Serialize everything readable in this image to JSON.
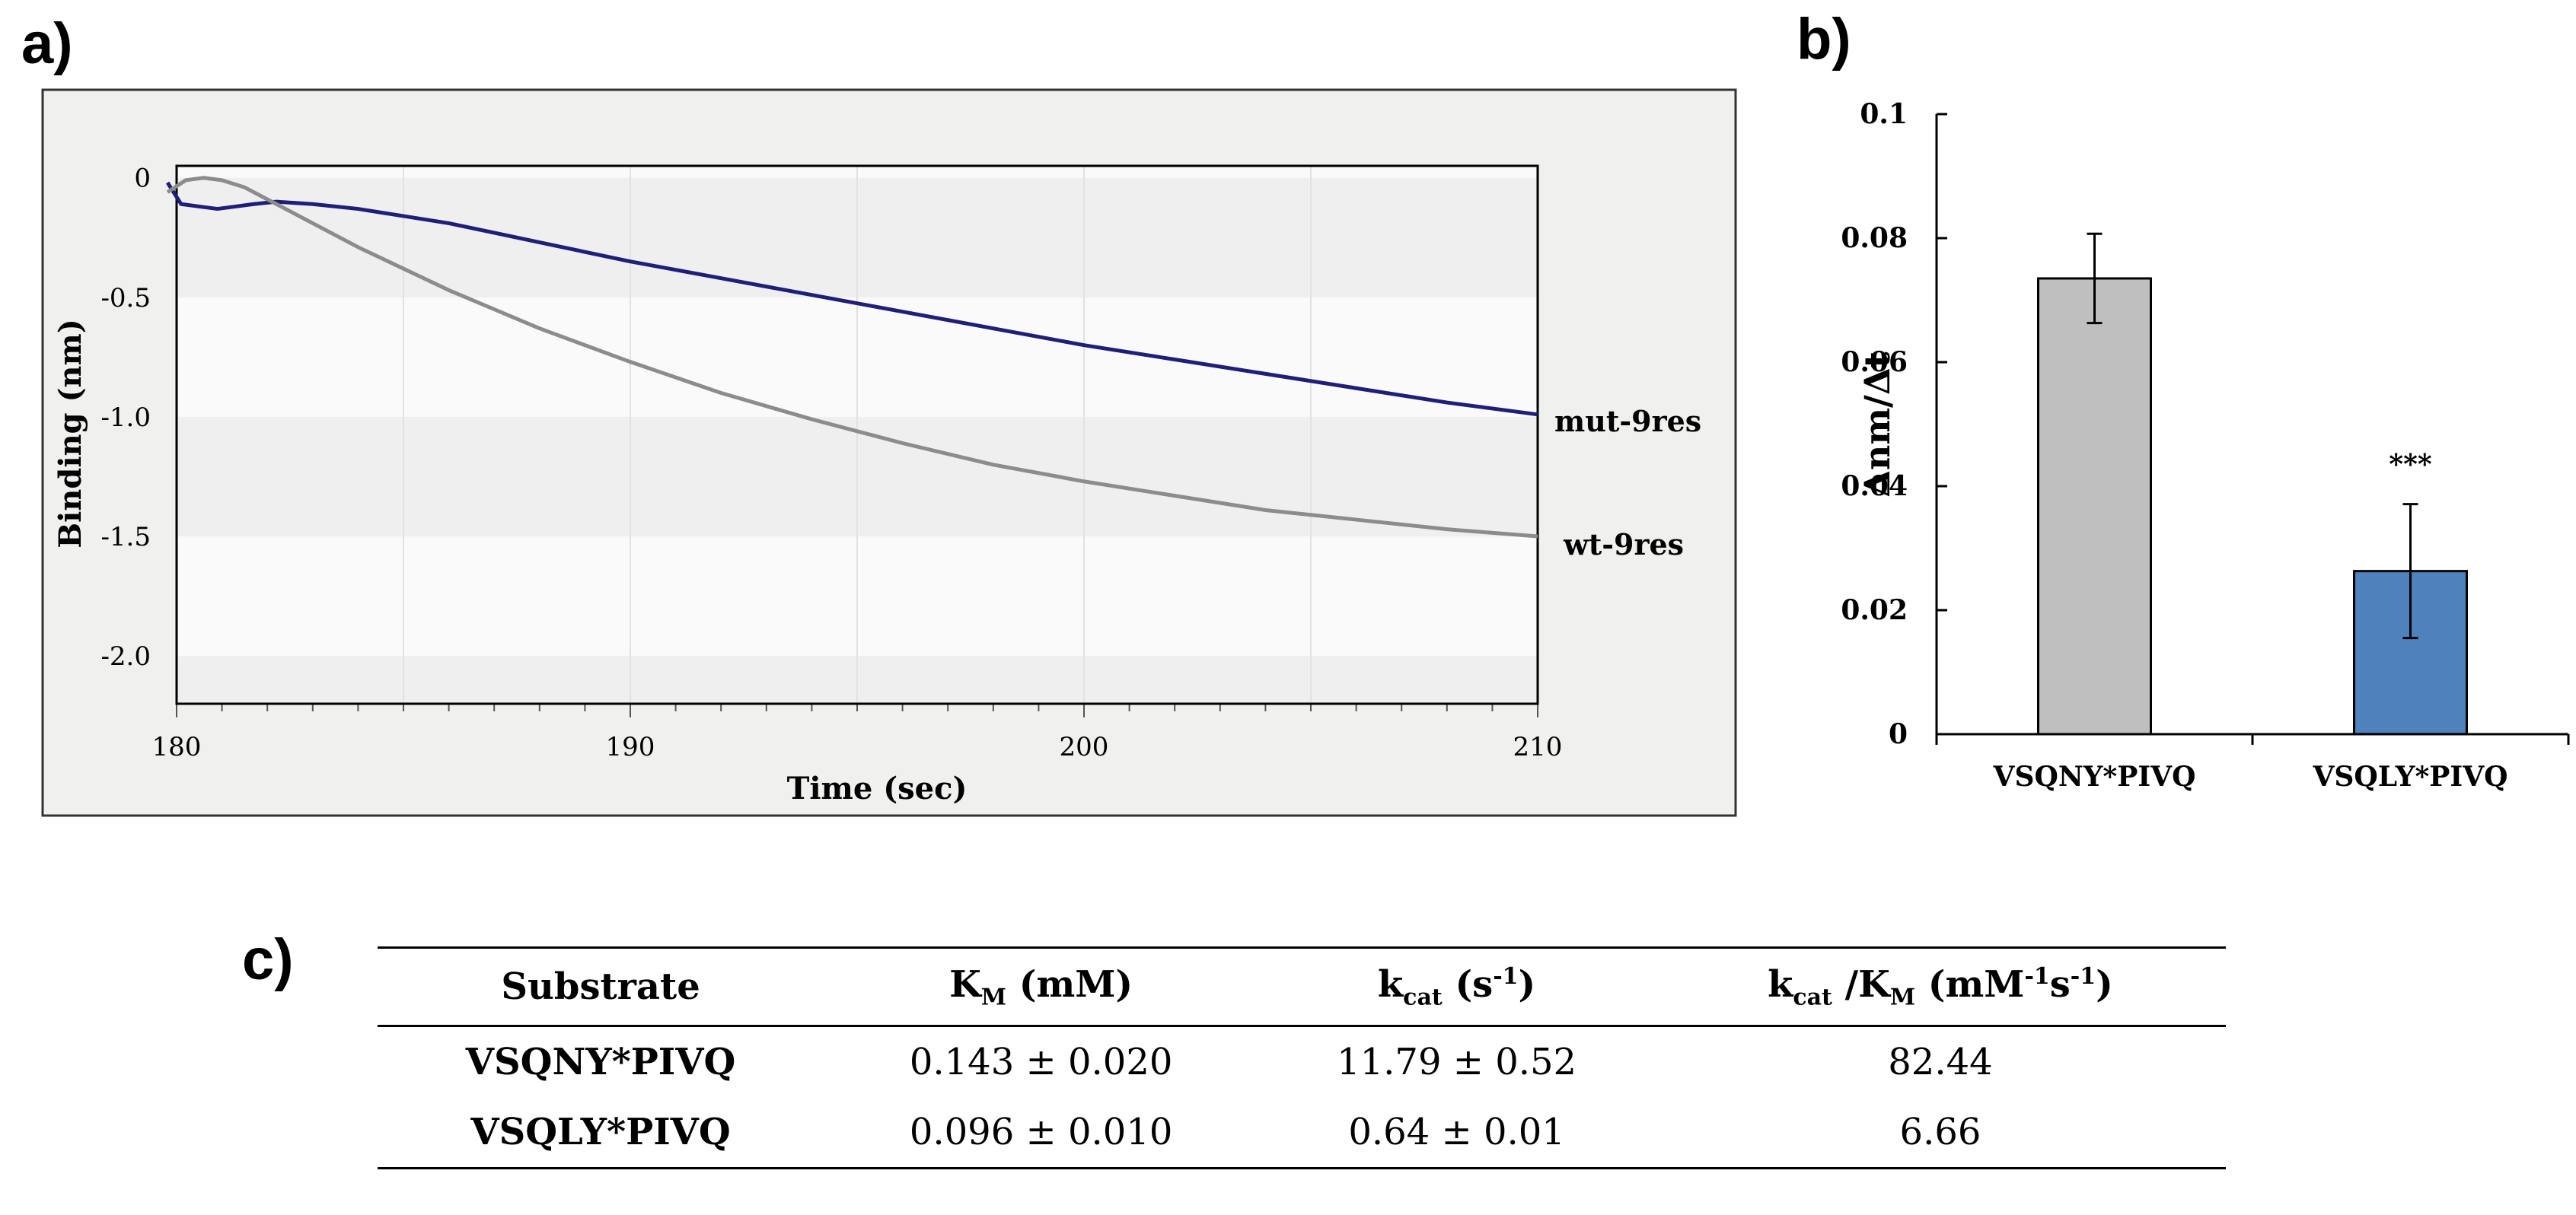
{
  "panels": {
    "a": "a)",
    "b": "b)",
    "c": "c)"
  },
  "chart_data": [
    {
      "type": "line",
      "panel": "a",
      "xlabel": "Time (sec)",
      "ylabel": "Binding (nm)",
      "xlim": [
        180,
        210
      ],
      "ylim": [
        -2.2,
        0.05
      ],
      "x_ticks": [
        180,
        190,
        200,
        210
      ],
      "y_ticks": [
        0,
        -0.5,
        -1.0,
        -1.5,
        -2.0
      ],
      "y_tick_labels": [
        "0",
        "-0.5",
        "-1.0",
        "-1.5",
        "-2.0"
      ],
      "series": [
        {
          "name": "mut-9res",
          "color": "#1f1f7a",
          "x": [
            179.8,
            180.1,
            180.5,
            180.9,
            181.3,
            181.7,
            182.2,
            183,
            184,
            186,
            188,
            190,
            192,
            194,
            196,
            198,
            200,
            202,
            204,
            206,
            208,
            210
          ],
          "y": [
            -0.02,
            -0.11,
            -0.12,
            -0.13,
            -0.12,
            -0.11,
            -0.1,
            -0.11,
            -0.13,
            -0.19,
            -0.27,
            -0.35,
            -0.42,
            -0.49,
            -0.56,
            -0.63,
            -0.7,
            -0.76,
            -0.82,
            -0.88,
            -0.94,
            -0.99
          ]
        },
        {
          "name": "wt-9res",
          "color": "#8c8c8c",
          "x": [
            179.8,
            180.2,
            180.6,
            181.0,
            181.5,
            182,
            183,
            184,
            185,
            186,
            188,
            190,
            192,
            194,
            196,
            198,
            200,
            202,
            204,
            206,
            208,
            210
          ],
          "y": [
            -0.06,
            -0.01,
            0.0,
            -0.01,
            -0.04,
            -0.09,
            -0.19,
            -0.29,
            -0.38,
            -0.47,
            -0.63,
            -0.77,
            -0.9,
            -1.01,
            -1.11,
            -1.2,
            -1.27,
            -1.33,
            -1.39,
            -1.43,
            -1.47,
            -1.5
          ]
        }
      ]
    },
    {
      "type": "bar",
      "panel": "b",
      "ylabel": "Δnm/Δt",
      "ylim": [
        0,
        0.1
      ],
      "y_ticks": [
        0,
        0.02,
        0.04,
        0.06,
        0.08,
        0.1
      ],
      "y_tick_labels": [
        "0",
        "0.02",
        "0.04",
        "0.06",
        "0.08",
        "0.1"
      ],
      "categories": [
        "VSQNY*PIVQ",
        "VSQLY*PIVQ"
      ],
      "values": [
        0.0735,
        0.0263
      ],
      "errors": [
        0.0072,
        0.0108
      ],
      "colors": [
        "#bfbfbf",
        "#4f81bd"
      ],
      "annotations": [
        "",
        "***"
      ]
    }
  ],
  "table": {
    "headers": {
      "substrate": "Substrate",
      "km": {
        "main": "K",
        "sub": "M",
        "rest": " (mM)"
      },
      "kcat": {
        "main": "k",
        "sub": "cat",
        "rest": " (s",
        "sup": "-1",
        "end": ")"
      },
      "eff": {
        "k": "k",
        "ksub": "cat",
        "slash": " /K",
        "msub": "M",
        "open": " (mM",
        "sup1": "-1",
        "s": "s",
        "sup2": "-1",
        "end": ")"
      }
    },
    "rows": [
      {
        "substrate": "VSQNY*PIVQ",
        "km": "0.143 ± 0.020",
        "kcat": "11.79 ± 0.52",
        "eff": "82.44"
      },
      {
        "substrate": "VSQLY*PIVQ",
        "km": "0.096 ± 0.010",
        "kcat": "0.64 ± 0.01",
        "eff": "6.66"
      }
    ]
  }
}
